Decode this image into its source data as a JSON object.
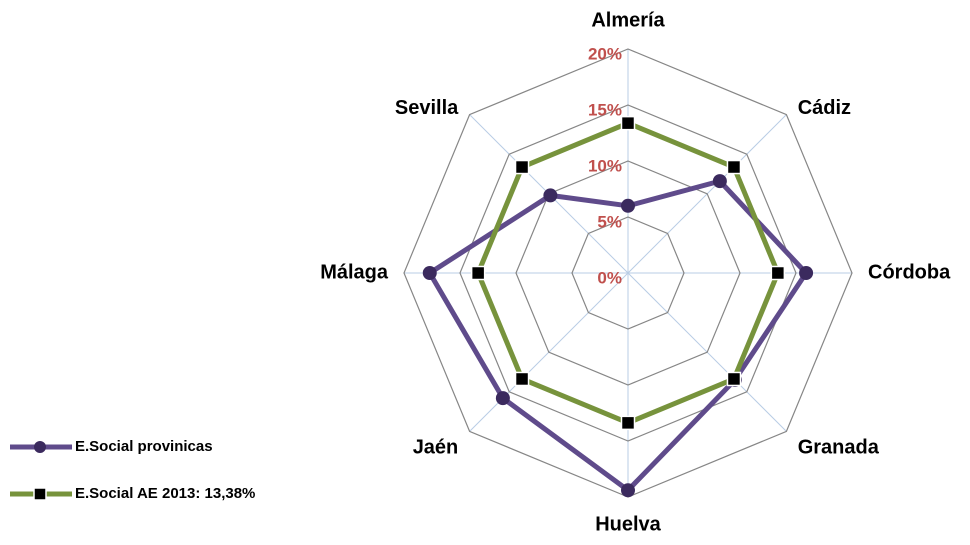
{
  "chart_data": {
    "type": "radar",
    "categories": [
      "Almería",
      "Cádiz",
      "Córdoba",
      "Granada",
      "Huelva",
      "Jaén",
      "Málaga",
      "Sevilla"
    ],
    "series": [
      {
        "name": "E.Social provinicas",
        "color": "#5f4b8b",
        "marker": "circle",
        "values": [
          6,
          11.6,
          15.9,
          13.5,
          19.4,
          15.8,
          17.7,
          9.8
        ]
      },
      {
        "name": "E.Social AE 2013: 13,38%",
        "color": "#77933c",
        "marker": "square",
        "values": [
          13.38,
          13.38,
          13.38,
          13.38,
          13.38,
          13.38,
          13.38,
          13.38
        ]
      }
    ],
    "ylim": [
      0,
      20
    ],
    "yticks": [
      {
        "value": 0,
        "label": "0%"
      },
      {
        "value": 5,
        "label": "5%"
      },
      {
        "value": 10,
        "label": "10%"
      },
      {
        "value": 15,
        "label": "15%"
      },
      {
        "value": 20,
        "label": "20%"
      }
    ],
    "grid": true,
    "legend": "left"
  }
}
